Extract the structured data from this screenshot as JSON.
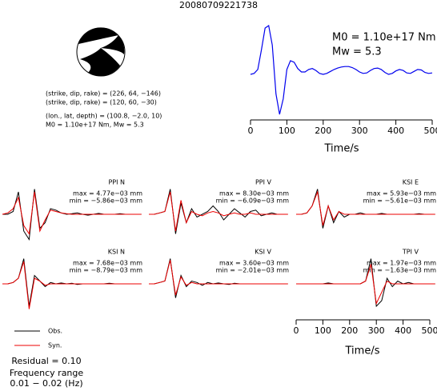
{
  "chart_data": [
    {
      "type": "line",
      "title": "20080709221738",
      "annotations": [
        "M0 = 1.10e+17 Nm",
        "Mw = 5.3"
      ],
      "source_info": [
        "(strike, dip, rake) = (226, 64, −146)",
        "(strike, dip, rake) = (120, 60, −30)",
        "(lon., lat, depth) = (100.8, −2.0, 10)",
        "M0 = 1.10e+17 Nm, Mw = 5.3"
      ],
      "xlabel": "Time/s",
      "xlim": [
        0,
        500
      ],
      "xticks": [
        0,
        100,
        200,
        300,
        400,
        500
      ],
      "color": "#0000ee",
      "x": [
        0,
        10,
        20,
        30,
        40,
        50,
        60,
        70,
        80,
        90,
        100,
        110,
        120,
        130,
        140,
        150,
        160,
        170,
        180,
        190,
        200,
        210,
        220,
        230,
        240,
        250,
        260,
        270,
        280,
        290,
        300,
        310,
        320,
        330,
        340,
        350,
        360,
        370,
        380,
        390,
        400,
        410,
        420,
        430,
        440,
        450,
        460,
        470,
        480,
        490,
        500
      ],
      "values": [
        0,
        0.02,
        0.1,
        0.5,
        0.95,
        1.0,
        0.6,
        -0.4,
        -0.82,
        -0.5,
        0.1,
        0.28,
        0.25,
        0.12,
        0.05,
        0.05,
        0.1,
        0.12,
        0.08,
        0.02,
        0,
        0.02,
        0.06,
        0.1,
        0.13,
        0.15,
        0.16,
        0.16,
        0.14,
        0.1,
        0.05,
        0.02,
        0.03,
        0.08,
        0.12,
        0.13,
        0.1,
        0.04,
        0,
        0.02,
        0.07,
        0.1,
        0.08,
        0.03,
        0.02,
        0.06,
        0.1,
        0.09,
        0.04,
        0.02,
        0.03
      ]
    },
    {
      "type": "waveforms",
      "xlabel": "Time/s",
      "xlim": [
        0,
        520
      ],
      "xticks": [
        0,
        100,
        200,
        300,
        400,
        500
      ],
      "legend": [
        {
          "name": "Obs.",
          "color": "#000000"
        },
        {
          "name": "Syn.",
          "color": "#ee0000"
        }
      ],
      "footer": [
        "Residual = 0.10",
        "Frequency range",
        "0.01 − 0.02 (Hz)"
      ],
      "x": [
        0,
        20,
        40,
        60,
        80,
        100,
        120,
        140,
        160,
        180,
        200,
        220,
        240,
        260,
        280,
        300,
        320,
        340,
        360,
        380,
        400,
        420,
        440,
        460,
        480,
        500,
        520
      ],
      "panels": [
        {
          "station": "PPI N",
          "max": "max = 4.77e−03 mm",
          "min": "min = −5.86e−03 mm",
          "observed": [
            0,
            0,
            0.1,
            0.8,
            -0.6,
            -0.9,
            0.9,
            -0.5,
            -0.3,
            0.2,
            0.15,
            0.05,
            0,
            0.02,
            0.05,
            0,
            -0.03,
            0,
            0.03,
            0,
            0,
            0,
            0.02,
            0,
            0,
            0,
            0
          ],
          "synthetic": [
            0,
            0.05,
            0.2,
            0.6,
            -0.4,
            -0.7,
            0.8,
            -0.6,
            -0.2,
            0.15,
            0.1,
            0.05,
            0.02,
            0,
            0,
            0,
            0,
            0,
            0,
            0,
            0,
            0,
            0,
            0,
            0,
            0,
            0
          ]
        },
        {
          "station": "PPI V",
          "max": "max = 8.30e−03 mm",
          "min": "min = −6.09e−03 mm",
          "observed": [
            0,
            0,
            0.05,
            0.1,
            0.9,
            -0.7,
            0.4,
            -0.3,
            0.2,
            -0.1,
            0,
            0.1,
            0.3,
            0.1,
            -0.2,
            0,
            0.2,
            0.05,
            -0.1,
            0.1,
            0.15,
            -0.05,
            0,
            0.05,
            0,
            0,
            0
          ],
          "synthetic": [
            0,
            0,
            0.05,
            0.1,
            0.8,
            -0.6,
            0.5,
            -0.3,
            0.1,
            0,
            -0.05,
            0.05,
            0.1,
            0.05,
            -0.05,
            0,
            0.05,
            0,
            0,
            0.05,
            0,
            0,
            0,
            0,
            0,
            0,
            0
          ]
        },
        {
          "station": "KSI E",
          "max": "max = 5.93e−03 mm",
          "min": "min = −5.61e−03 mm",
          "observed": [
            0,
            0,
            0.05,
            0.3,
            0.9,
            -0.5,
            0.3,
            -0.3,
            0.1,
            -0.1,
            0,
            0,
            0.05,
            0,
            0,
            0,
            0.03,
            0,
            0,
            0,
            0,
            0,
            0,
            0.02,
            0,
            0,
            0
          ],
          "synthetic": [
            0,
            0,
            0.05,
            0.3,
            0.8,
            -0.4,
            0.3,
            -0.2,
            0.1,
            0,
            0,
            0,
            0,
            0,
            0,
            0,
            0,
            0,
            0,
            0,
            0,
            0,
            0,
            0,
            0,
            0,
            0
          ]
        },
        {
          "station": "KSI N",
          "max": "max = 7.68e−03 mm",
          "min": "min = −8.79e−03 mm",
          "observed": [
            0,
            0,
            0.05,
            0.2,
            0.9,
            -0.8,
            0.3,
            0.1,
            -0.1,
            0.05,
            0,
            0.03,
            0,
            0.02,
            -0.02,
            0,
            0,
            0,
            0,
            0,
            0.02,
            0,
            0,
            0,
            0,
            0,
            0
          ],
          "synthetic": [
            0,
            0,
            0.05,
            0.2,
            0.8,
            -0.9,
            0.2,
            0.1,
            -0.05,
            0,
            0,
            0,
            0,
            0,
            0,
            0,
            0,
            0,
            0,
            0,
            0,
            0,
            0,
            0,
            0,
            0,
            0
          ]
        },
        {
          "station": "KSI V",
          "max": "max = 3.60e−03 mm",
          "min": "min = −2.01e−03 mm",
          "observed": [
            0,
            0,
            0.05,
            0.1,
            0.9,
            -0.5,
            0.3,
            -0.1,
            0.1,
            0.05,
            -0.05,
            0.05,
            0,
            0.03,
            0,
            -0.02,
            0.02,
            0,
            0,
            0,
            0,
            0,
            0,
            0,
            0,
            0,
            0
          ],
          "synthetic": [
            0,
            0,
            0.05,
            0.1,
            0.85,
            -0.4,
            0.25,
            -0.05,
            0.05,
            0,
            0,
            0,
            0,
            0,
            0,
            0,
            0,
            0,
            0,
            0,
            0,
            0,
            0,
            0,
            0,
            0,
            0
          ]
        },
        {
          "station": "TPI V",
          "max": "max = 1.97e−03 mm",
          "min": "min = −1.63e−03 mm",
          "observed": [
            0,
            0,
            0,
            0,
            0,
            0,
            0.03,
            0,
            0,
            0,
            0,
            0,
            0,
            0.1,
            0.9,
            -0.8,
            -0.6,
            0.2,
            -0.1,
            0.1,
            0,
            0.05,
            0,
            0,
            0,
            0,
            0
          ],
          "synthetic": [
            0,
            0,
            0,
            0,
            0,
            0,
            0,
            0,
            0,
            0,
            0,
            0,
            0,
            0.1,
            0.7,
            -0.7,
            -0.3,
            0.1,
            0,
            0,
            0,
            0,
            0,
            0,
            0,
            0,
            0
          ]
        }
      ]
    }
  ]
}
